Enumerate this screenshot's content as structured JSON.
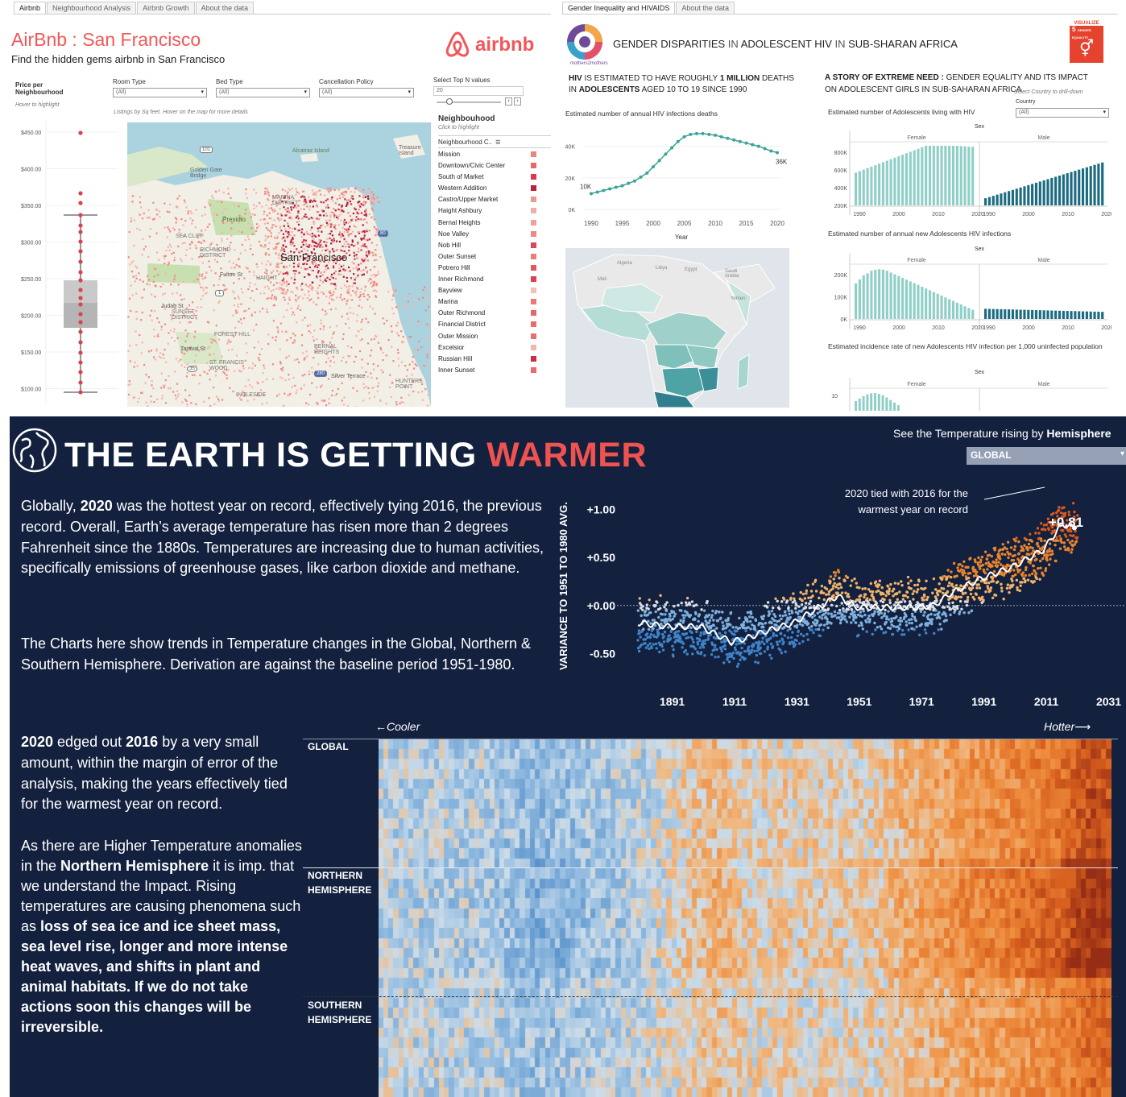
{
  "airbnb": {
    "tabs": [
      "Airbnb",
      "Neighbourhood Analysis",
      "Airbnb Growth",
      "About the data"
    ],
    "title": "AirBnb : San Francisco",
    "subtitle": "Find the hidden gems airbnb in San Francisco",
    "logo_text": "airbnb",
    "price_label": "Price per Neighbourhood",
    "price_hint": "Hover to highlight",
    "filters": {
      "room_type": "Room Type",
      "bed_type": "Bed Type",
      "cancellation": "Cancellation Policy",
      "topn": "Select Top N values",
      "all": "(All)",
      "topn_value": "20"
    },
    "map_hint": "Listings by Sq feet. Hover on the map for more details",
    "price_ticks": [
      "$450.00",
      "$400.00",
      "$350.00",
      "$300.00",
      "$250.00",
      "$200.00",
      "$150.00",
      "$100.00"
    ],
    "map_labels": {
      "city": "San Francisco",
      "alcatraz": "Alcatraz Island",
      "treasure": "Treasure Island",
      "golden_gate": "Golden Gate Bridge",
      "presidio": "Presidio",
      "marina": "MARINA DISTRICT",
      "sea_cliff": "SEA CLIFF",
      "richmond": "RICHMOND DISTRICT",
      "sunset": "SUNSET DISTRICT",
      "forest_hill": "FOREST HILL",
      "taraval": "Taraval St",
      "st_francis": "ST. FRANCIS WOOD",
      "bernal": "BERNAL HEIGHTS",
      "silver": "Silver Terrace",
      "hunters": "HUNTERS POINT",
      "ingleside": "INGLESIDE",
      "fulton": "Fulton St",
      "judah": "Judah St",
      "haight": "HAIGHT",
      "hwy101": "101",
      "hwy1": "1",
      "hwy280": "280",
      "hwy35": "35",
      "hwy80": "80"
    },
    "neighbourhood": {
      "title": "Neighbouhood",
      "hint": "Click to highlight",
      "col": "Neighbourhood C..",
      "items": [
        {
          "name": "Mission",
          "color": "#e8857e"
        },
        {
          "name": "Downtown/Civic Center",
          "color": "#e66a6a"
        },
        {
          "name": "South of Market",
          "color": "#d83b4b"
        },
        {
          "name": "Western Addition",
          "color": "#c0213a"
        },
        {
          "name": "Castro/Upper Market",
          "color": "#e99a93"
        },
        {
          "name": "Haight Ashbury",
          "color": "#eeb0a8"
        },
        {
          "name": "Bernal Heights",
          "color": "#eba39b"
        },
        {
          "name": "Noe Valley",
          "color": "#e88b83"
        },
        {
          "name": "Nob Hill",
          "color": "#da4a55"
        },
        {
          "name": "Outer Sunset",
          "color": "#e7807a"
        },
        {
          "name": "Potrero Hill",
          "color": "#dd5860"
        },
        {
          "name": "Inner Richmond",
          "color": "#d8434f"
        },
        {
          "name": "Bayview",
          "color": "#f1c0b8"
        },
        {
          "name": "Marina",
          "color": "#e77a75"
        },
        {
          "name": "Outer Richmond",
          "color": "#e06a6b"
        },
        {
          "name": "Financial District",
          "color": "#e36f6f"
        },
        {
          "name": "Outer Mission",
          "color": "#e47272"
        },
        {
          "name": "Excelsior",
          "color": "#f0b6ae"
        },
        {
          "name": "Russian Hill",
          "color": "#c92f43"
        },
        {
          "name": "Inner Sunset",
          "color": "#e66d6d"
        }
      ]
    }
  },
  "hiv": {
    "tabs": [
      "Gender Inequality and HIVAIDS",
      "About the data"
    ],
    "title_parts": [
      "GENDER DISPARITIES ",
      "IN ",
      "ADOLESCENT HIV ",
      "IN ",
      "SUB-SHARAN AFRICA"
    ],
    "logo_caption": "mothers2mothers",
    "sdg_label": "VISUALIZE",
    "sdg_number": "5",
    "sdg_caption": "GENDER EQUALITY",
    "left_heading_a": "HIV ",
    "left_heading_b": "IS ESTIMATED TO HAVE ROUGHLY ",
    "left_heading_c": "1 MILLION",
    "left_heading_d": " DEATHS IN ",
    "left_heading_e": "ADOLESCENTS",
    "left_heading_f": " AGED 10 TO 19 SINCE 1990",
    "deaths_chart_title": "Estimated number of annual HIV infections deaths",
    "deaths_y": [
      "40K",
      "20K",
      "0K"
    ],
    "deaths_x": [
      "1990",
      "1995",
      "2000",
      "2005",
      "2010",
      "2015",
      "2020"
    ],
    "deaths_xlabel": "Year",
    "deaths_start": "10K",
    "deaths_end": "36K",
    "right_heading_a": "A STORY OF EXTREME NEED : ",
    "right_heading_b": "GENDER EQUALITY AND ITS IMPACT ON ADOLESCENT GIRLS IN SUB-SAHARAN AFRICA",
    "drill_hint": "Select Country to drill-down",
    "country_label": "Country",
    "country_value": "(All)",
    "living_title": "Estimated number of Adolescents living with HIV",
    "living_y": [
      "800K",
      "600K",
      "400K",
      "200K"
    ],
    "new_title": "Estimated number of annual new Adolescents HIV infections",
    "new_y": [
      "200K",
      "100K",
      "0K"
    ],
    "incidence_title": "Estimated incidence rate of new Adolescents HIV infection per 1,000 uninfected population",
    "incidence_y": "10",
    "sex": "Sex",
    "female": "Female",
    "male": "Male",
    "panel_x": [
      "1990",
      "2000",
      "2010",
      "2020"
    ],
    "map_labels": [
      "Algeria",
      "Libya",
      "Egypt",
      "Saudi Arabia",
      "Yemen",
      "Mali"
    ],
    "chart_data": {
      "type": "line",
      "title": "Estimated number of annual HIV infections deaths",
      "xlabel": "Year",
      "x": [
        1990,
        1991,
        1992,
        1993,
        1994,
        1995,
        1996,
        1997,
        1998,
        1999,
        2000,
        2001,
        2002,
        2003,
        2004,
        2005,
        2006,
        2007,
        2008,
        2009,
        2010,
        2011,
        2012,
        2013,
        2014,
        2015,
        2016,
        2017,
        2018,
        2019,
        2020
      ],
      "y": [
        10000,
        11000,
        12000,
        13000,
        14000,
        15000,
        16500,
        18000,
        20500,
        23000,
        27000,
        31000,
        35000,
        39000,
        43000,
        46000,
        47500,
        48000,
        48000,
        47500,
        47000,
        46000,
        45000,
        44000,
        43000,
        42000,
        41000,
        40000,
        38500,
        37000,
        36000
      ],
      "ylim": [
        0,
        50000
      ]
    }
  },
  "earth": {
    "title_a": "THE EARTH IS GETTING ",
    "title_b": "WARMER",
    "see_label": "See the Temperature rising by ",
    "see_bold": "Hemisphere",
    "select_value": "GLOBAL",
    "para1_a": "Globally, ",
    "para1_b": "2020",
    "para1_c": " was the hottest year on record, effectively tying 2016, the previous record. Overall, Earth’s average temperature has risen more than 2 degrees Fahrenheit since the 1880s. Temperatures are increasing due to human activities, specifically emissions of greenhouse gases, like carbon dioxide and methane.",
    "para2": "The Charts here show trends in Temperature changes in the Global, Northern & Southern Hemisphere. Derivation are against the baseline period  1951-1980.",
    "para3_a": "2020",
    "para3_b": " edged out ",
    "para3_c": "2016",
    "para3_d": " by a very small amount, within the margin of error of the analysis, making the years effectively tied for the warmest year on record.",
    "para4_a": "As there are Higher Temperature anomalies in the ",
    "para4_b": "Northern Hemisphere",
    "para4_c": " it is imp. that we understand the Impact. Rising temperatures are causing phenomena such as ",
    "para4_d": "loss of sea ice and ice sheet mass, sea level rise, longer and more intense heat waves, and shifts in plant and animal habitats. If we do not take actions soon this changes will be irreversible.",
    "ylabel": "VARIANCE TO 1951 TO 1980 AVG.",
    "yticks": [
      "+1.00",
      "+0.50",
      "+0.00",
      "-0.50"
    ],
    "xticks": [
      "1891",
      "1911",
      "1931",
      "1951",
      "1971",
      "1991",
      "2011",
      "2031"
    ],
    "annotation": "2020 tied with 2016 for the warmest year on record",
    "end_value": "+0.81",
    "cooler": "←Cooler",
    "hotter": "Hotter⟶",
    "rows": [
      "GLOBAL",
      "NORTHERN HEMISPHERE",
      "SOUTHERN HEMISPHERE"
    ],
    "chart_data": {
      "type": "scatter",
      "ylabel": "VARIANCE TO 1951 TO 1980 AVG.",
      "xlim": [
        1880,
        2035
      ],
      "ylim": [
        -0.8,
        1.3
      ],
      "trend_x": [
        1880,
        1890,
        1900,
        1910,
        1915,
        1920,
        1930,
        1940,
        1944,
        1950,
        1960,
        1970,
        1975,
        1980,
        1990,
        2000,
        2010,
        2016,
        2020
      ],
      "trend_y": [
        -0.18,
        -0.22,
        -0.22,
        -0.38,
        -0.34,
        -0.28,
        -0.18,
        0.02,
        0.1,
        -0.02,
        -0.02,
        -0.02,
        0.0,
        0.12,
        0.28,
        0.4,
        0.58,
        0.85,
        0.81
      ],
      "colors": {
        "cold": "#3f83c9",
        "warm": "#e8722f"
      }
    }
  }
}
